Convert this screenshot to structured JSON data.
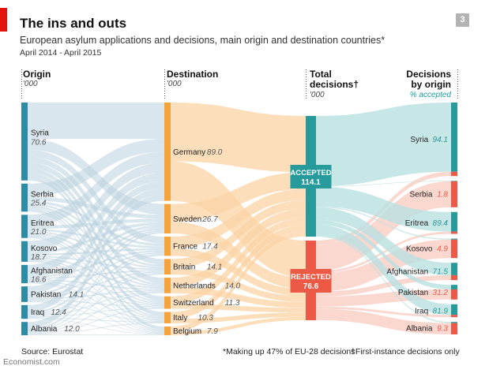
{
  "header": {
    "title": "The ins and outs",
    "subtitle": "European asylum applications and decisions, main origin and destination countries*",
    "date_range": "April 2014 - April 2015",
    "page_number": "3"
  },
  "columns": {
    "origin": {
      "title": "Origin",
      "unit": "'000"
    },
    "destination": {
      "title": "Destination",
      "unit": "'000"
    },
    "total": {
      "title_line1": "Total",
      "title_line2": "decisions†",
      "unit": "'000"
    },
    "decisions": {
      "title_line1": "Decisions",
      "title_line2": "by origin",
      "note": "% accepted"
    }
  },
  "footer": {
    "source": "Source: Eurostat",
    "note1": "*Making up 47% of EU-28 decisions",
    "note2": "†First-instance decisions only",
    "brand": "Economist.com"
  },
  "colors": {
    "origin_bar": "#2e8ba6",
    "origin_flow": "#b9d2de",
    "destination_bar": "#f5a33c",
    "destination_flow": "#fbd3a4",
    "accepted": "#279b9b",
    "accepted_flow": "#b9e0e0",
    "rejected": "#ec5a45",
    "rejected_flow": "#f8cbc0",
    "title_accent": "#e3120b"
  },
  "chart_data": {
    "type": "sankey",
    "units": "'000",
    "origins": [
      {
        "name": "Syria",
        "value": "70.6"
      },
      {
        "name": "Serbia",
        "value": "25.4"
      },
      {
        "name": "Eritrea",
        "value": "21.0"
      },
      {
        "name": "Kosovo",
        "value": "18.7"
      },
      {
        "name": "Afghanistan",
        "value": "16.6"
      },
      {
        "name": "Pakistan",
        "value": "14.1"
      },
      {
        "name": "Iraq",
        "value": "12.4"
      },
      {
        "name": "Albania",
        "value": "12.0"
      }
    ],
    "destinations": [
      {
        "name": "Germany",
        "value": "89.0"
      },
      {
        "name": "Sweden",
        "value": "26.7"
      },
      {
        "name": "France",
        "value": "17.4"
      },
      {
        "name": "Britain",
        "value": "14.1"
      },
      {
        "name": "Netherlands",
        "value": "14.0"
      },
      {
        "name": "Switzerland",
        "value": "11.3"
      },
      {
        "name": "Italy",
        "value": "10.3"
      },
      {
        "name": "Belgium",
        "value": "7.9"
      }
    ],
    "totals": [
      {
        "label": "ACCEPTED",
        "value": "114.1"
      },
      {
        "label": "REJECTED",
        "value": "76.6"
      }
    ],
    "decisions_by_origin": [
      {
        "name": "Syria",
        "pct_accepted": "94.1"
      },
      {
        "name": "Serbia",
        "pct_accepted": "1.8"
      },
      {
        "name": "Eritrea",
        "pct_accepted": "89.4"
      },
      {
        "name": "Kosovo",
        "pct_accepted": "4.9"
      },
      {
        "name": "Afghanistan",
        "pct_accepted": "71.5"
      },
      {
        "name": "Pakistan",
        "pct_accepted": "31.2"
      },
      {
        "name": "Iraq",
        "pct_accepted": "81.9"
      },
      {
        "name": "Albania",
        "pct_accepted": "9.3"
      }
    ]
  }
}
